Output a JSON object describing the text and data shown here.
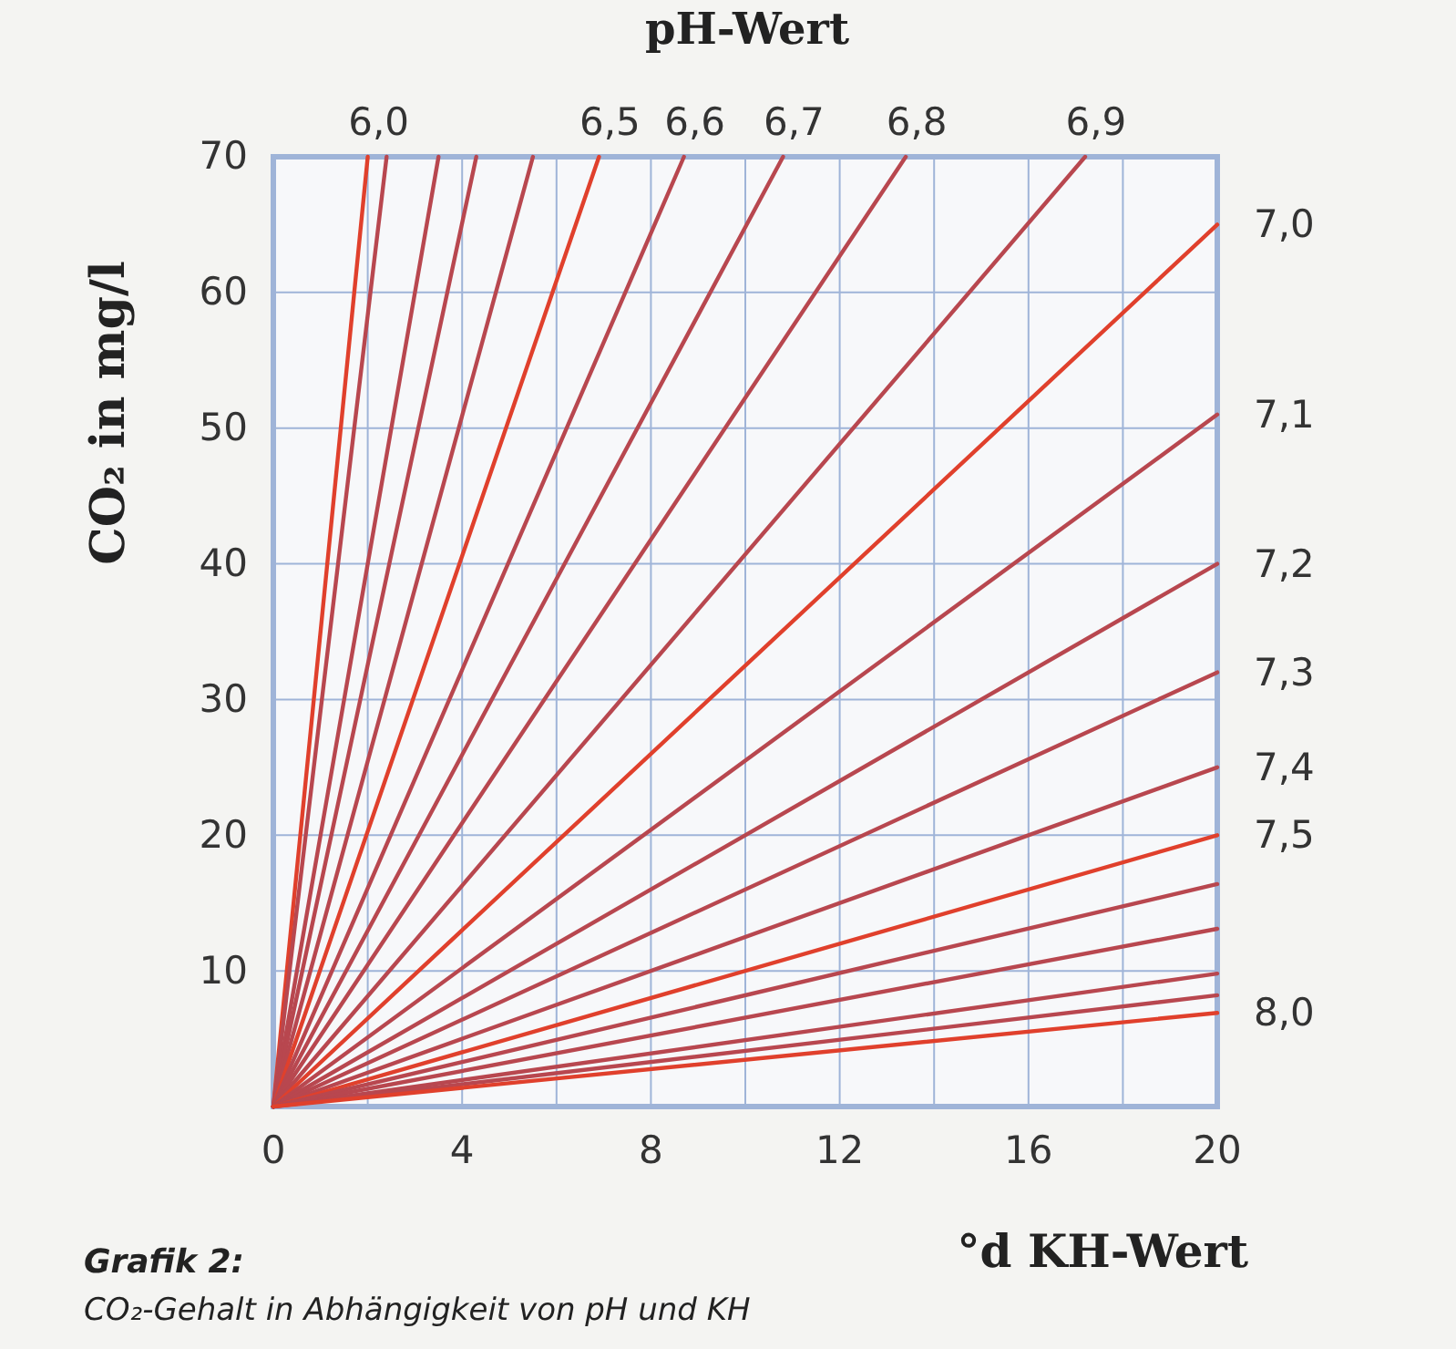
{
  "chart_data": {
    "type": "line",
    "title": "Grafik 2:",
    "subtitle": "CO₂-Gehalt in Abhängigkeit von pH und KH",
    "xlabel": "°d KH-Wert",
    "ylabel": "CO₂ in mg/l",
    "legend_title": "pH-Wert",
    "xlim": [
      0,
      20
    ],
    "xticks": [
      0,
      {
        "value": 2,
        "label": null
      },
      4,
      {
        "value": 6,
        "label": null
      },
      8,
      {
        "value": 10,
        "label": null
      },
      12,
      {
        "value": 14,
        "label": null
      },
      16,
      {
        "value": 18,
        "label": null
      },
      20
    ],
    "ylim": [
      0,
      70
    ],
    "yticks": [
      10,
      20,
      30,
      40,
      50,
      60,
      70
    ],
    "grid": true,
    "series": [
      {
        "name": "6,0",
        "color": "#e0402c",
        "x": [
          0,
          2.0
        ],
        "values": [
          0,
          70
        ]
      },
      {
        "color": "#b8474f",
        "x": [
          0,
          2.4
        ],
        "values": [
          0,
          70
        ]
      },
      {
        "color": "#b8474f",
        "x": [
          0,
          3.5
        ],
        "values": [
          0,
          70
        ]
      },
      {
        "color": "#b8474f",
        "x": [
          0,
          4.3
        ],
        "values": [
          0,
          70
        ]
      },
      {
        "color": "#b8474f",
        "x": [
          0,
          5.5
        ],
        "values": [
          0,
          70
        ]
      },
      {
        "name": "6,5",
        "color": "#e0402c",
        "x": [
          0,
          6.9
        ],
        "values": [
          0,
          70
        ]
      },
      {
        "name": "6,6",
        "color": "#b8474f",
        "x": [
          0,
          8.7
        ],
        "values": [
          0,
          70
        ]
      },
      {
        "name": "6,7",
        "color": "#b8474f",
        "x": [
          0,
          10.8
        ],
        "values": [
          0,
          70
        ]
      },
      {
        "name": "6,8",
        "color": "#b8474f",
        "x": [
          0,
          13.4
        ],
        "values": [
          0,
          70
        ]
      },
      {
        "name": "6,9",
        "color": "#b8474f",
        "x": [
          0,
          17.2
        ],
        "values": [
          0,
          70
        ]
      },
      {
        "name": "7,0",
        "color": "#e0402c",
        "x": [
          0,
          20
        ],
        "values": [
          0,
          65
        ]
      },
      {
        "name": "7,1",
        "color": "#b8474f",
        "x": [
          0,
          20
        ],
        "values": [
          0,
          51
        ]
      },
      {
        "name": "7,2",
        "color": "#b8474f",
        "x": [
          0,
          20
        ],
        "values": [
          0,
          40
        ]
      },
      {
        "name": "7,3",
        "color": "#b8474f",
        "x": [
          0,
          20
        ],
        "values": [
          0,
          32
        ]
      },
      {
        "name": "7,4",
        "color": "#b8474f",
        "x": [
          0,
          20
        ],
        "values": [
          0,
          25
        ]
      },
      {
        "name": "7,5",
        "color": "#e0402c",
        "x": [
          0,
          20
        ],
        "values": [
          0,
          20
        ]
      },
      {
        "color": "#b8474f",
        "x": [
          0,
          20
        ],
        "values": [
          0,
          16.4
        ]
      },
      {
        "color": "#b8474f",
        "x": [
          0,
          20
        ],
        "values": [
          0,
          13.1
        ]
      },
      {
        "color": "#b8474f",
        "x": [
          0,
          20
        ],
        "values": [
          0,
          9.8
        ]
      },
      {
        "color": "#b8474f",
        "x": [
          0,
          20
        ],
        "values": [
          0,
          8.2
        ]
      },
      {
        "name": "8,0",
        "color": "#e0402c",
        "x": [
          0,
          20
        ],
        "values": [
          0,
          6.9
        ]
      }
    ]
  }
}
